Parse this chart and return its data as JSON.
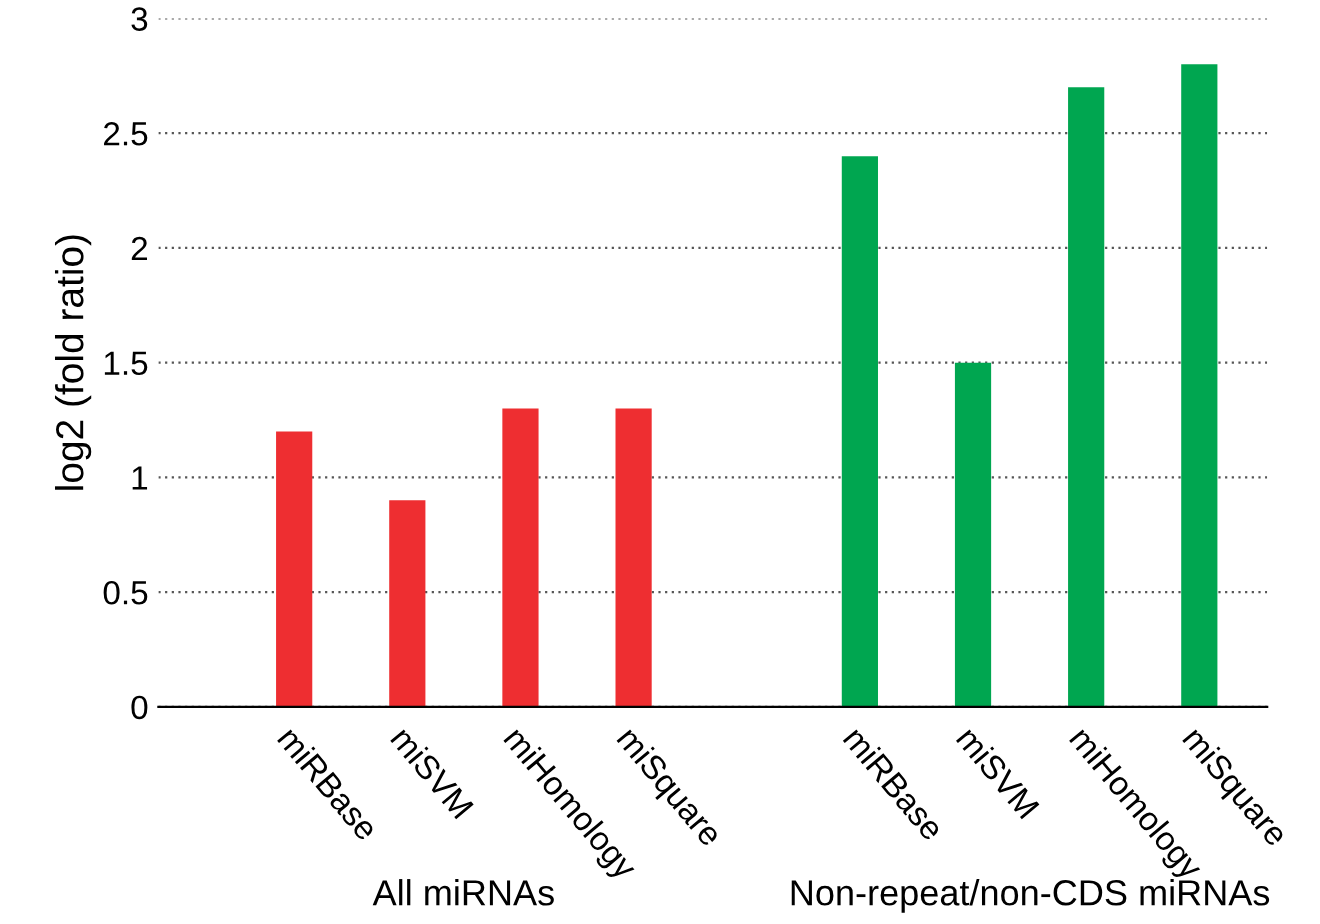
{
  "chart_data": {
    "type": "bar",
    "ylabel": "log2 (fold ratio)",
    "categories": [
      "miRBase",
      "miSVM",
      "miHomology",
      "miSquare",
      null,
      "miRBase",
      "miSVM",
      "miHomology",
      "miSquare"
    ],
    "values": [
      1.2,
      0.9,
      1.3,
      1.3,
      null,
      2.4,
      1.5,
      2.7,
      2.8
    ],
    "colors": [
      "#ee2e31",
      "#ee2e31",
      "#ee2e31",
      "#ee2e31",
      null,
      "#00a650",
      "#00a650",
      "#00a650",
      "#00a650"
    ],
    "ylim": [
      0,
      3
    ],
    "yticks": [
      0,
      0.5,
      1,
      1.5,
      2,
      2.5,
      3
    ],
    "grid": "y",
    "annotations": [
      "All miRNAs",
      "Non-repeat/non-CDS miRNAs"
    ]
  }
}
